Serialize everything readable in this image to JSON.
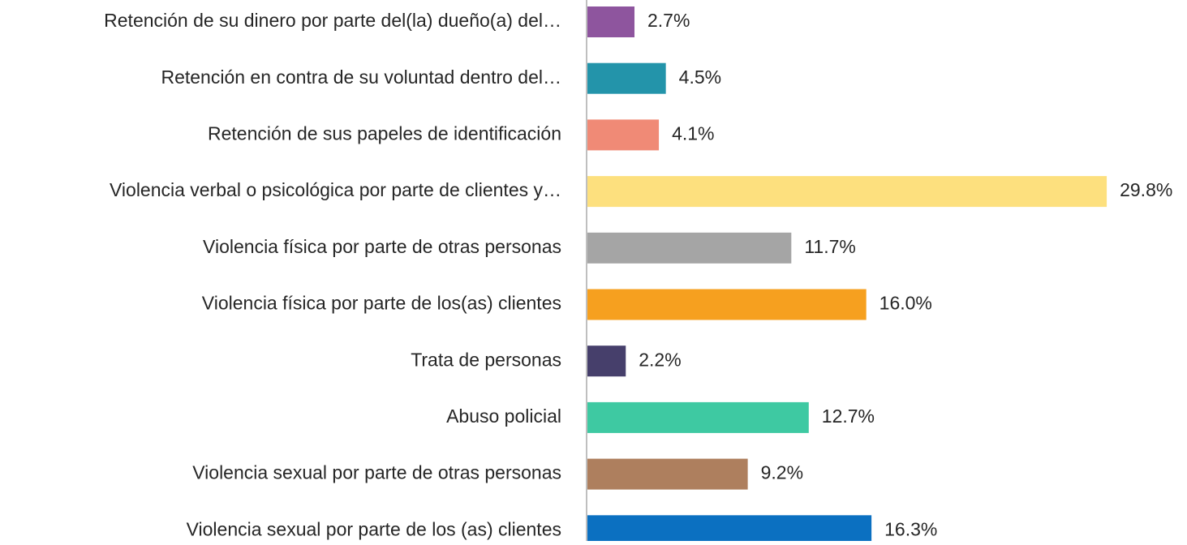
{
  "chart_data": {
    "type": "bar",
    "orientation": "horizontal",
    "categories": [
      "Retención de su dinero por parte del(la) dueño(a) del…",
      "Retención en contra de su voluntad dentro del…",
      "Retención de sus papeles de identificación",
      "Violencia verbal o psicológica por parte de clientes y…",
      "Violencia física por parte de otras personas",
      "Violencia física por parte de los(as) clientes",
      "Trata de personas",
      "Abuso policial",
      "Violencia sexual por parte de otras personas",
      "Violencia sexual por parte de los (as) clientes"
    ],
    "values": [
      2.7,
      4.5,
      4.1,
      29.8,
      11.7,
      16.0,
      2.2,
      12.7,
      9.2,
      16.3
    ],
    "value_labels": [
      "2.7%",
      "4.5%",
      "4.1%",
      "29.8%",
      "11.7%",
      "16.0%",
      "2.2%",
      "12.7%",
      "9.2%",
      "16.3%"
    ],
    "colors": [
      "#8e559e",
      "#2394aa",
      "#f08a76",
      "#fde07e",
      "#a5a5a5",
      "#f6a01f",
      "#463f6b",
      "#3ec9a2",
      "#ae7f5e",
      "#0b70c1"
    ]
  }
}
